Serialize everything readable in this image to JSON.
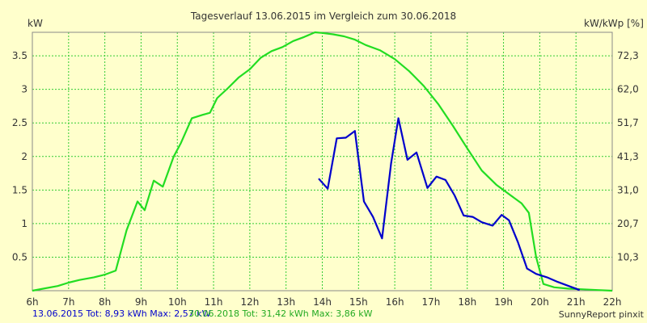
{
  "chart_data": {
    "type": "line",
    "title": "Tagesverlauf 13.06.2015 im Vergleich zum 30.06.2018",
    "ylabel_left": "kW",
    "ylabel_right": "kW/kWp [%]",
    "x_ticks": [
      "6h",
      "7h",
      "8h",
      "9h",
      "10h",
      "11h",
      "12h",
      "13h",
      "14h",
      "15h",
      "16h",
      "17h",
      "18h",
      "19h",
      "20h",
      "21h",
      "22h"
    ],
    "xlim": [
      6,
      22
    ],
    "ylim": [
      0,
      3.85
    ],
    "y_ticks_left": [
      "0.5",
      "1",
      "1.5",
      "2",
      "2.5",
      "3",
      "3.5"
    ],
    "y_ticks_left_values": [
      0.5,
      1,
      1.5,
      2,
      2.5,
      3,
      3.5
    ],
    "y_ticks_right": [
      "10,3",
      "20,7",
      "31,0",
      "41,3",
      "51,7",
      "62,0",
      "72,3"
    ],
    "grid": true,
    "colors": {
      "background": "#ffffcc",
      "grid": "#33cc33",
      "axis": "#888888",
      "series_2015": "#0000cc",
      "series_2018": "#22dd22"
    },
    "series": [
      {
        "key": "series_2018",
        "x": [
          6.0,
          6.3,
          6.7,
          7.0,
          7.3,
          7.7,
          8.0,
          8.3,
          8.6,
          8.9,
          9.1,
          9.35,
          9.6,
          9.9,
          10.1,
          10.4,
          10.7,
          10.9,
          11.1,
          11.4,
          11.7,
          12.0,
          12.3,
          12.6,
          12.9,
          13.2,
          13.5,
          13.8,
          14.0,
          14.3,
          14.6,
          14.9,
          15.2,
          15.6,
          16.0,
          16.4,
          16.8,
          17.2,
          17.6,
          18.0,
          18.4,
          18.8,
          19.2,
          19.5,
          19.7,
          19.9,
          20.1,
          20.4,
          20.8,
          21.2,
          21.6,
          22.0
        ],
        "y": [
          0.0,
          0.03,
          0.07,
          0.12,
          0.16,
          0.2,
          0.24,
          0.3,
          0.9,
          1.33,
          1.2,
          1.64,
          1.55,
          2.0,
          2.2,
          2.57,
          2.62,
          2.65,
          2.87,
          3.02,
          3.18,
          3.3,
          3.47,
          3.57,
          3.63,
          3.72,
          3.78,
          3.85,
          3.84,
          3.82,
          3.79,
          3.74,
          3.66,
          3.58,
          3.45,
          3.27,
          3.05,
          2.78,
          2.46,
          2.12,
          1.79,
          1.58,
          1.42,
          1.3,
          1.16,
          0.5,
          0.1,
          0.05,
          0.03,
          0.02,
          0.01,
          0.0
        ]
      },
      {
        "key": "series_2015",
        "x": [
          13.9,
          14.15,
          14.4,
          14.65,
          14.9,
          15.15,
          15.4,
          15.65,
          15.9,
          16.1,
          16.35,
          16.6,
          16.9,
          17.15,
          17.4,
          17.65,
          17.9,
          18.15,
          18.4,
          18.7,
          18.95,
          19.15,
          19.4,
          19.65,
          19.9,
          20.2,
          20.5,
          20.8,
          21.1
        ],
        "y": [
          1.67,
          1.52,
          2.27,
          2.28,
          2.38,
          1.33,
          1.1,
          0.78,
          1.9,
          2.57,
          1.95,
          2.06,
          1.53,
          1.7,
          1.65,
          1.42,
          1.12,
          1.1,
          1.02,
          0.97,
          1.13,
          1.05,
          0.72,
          0.33,
          0.25,
          0.2,
          0.13,
          0.07,
          0.01
        ]
      }
    ]
  },
  "footer": {
    "stat_2015": "13.06.2015 Tot: 8,93 kWh Max: 2,57 kW",
    "stat_2018": "30.06.2018 Tot: 31,42 kWh Max: 3,86 kW",
    "credit": "SunnyReport pinxit"
  }
}
